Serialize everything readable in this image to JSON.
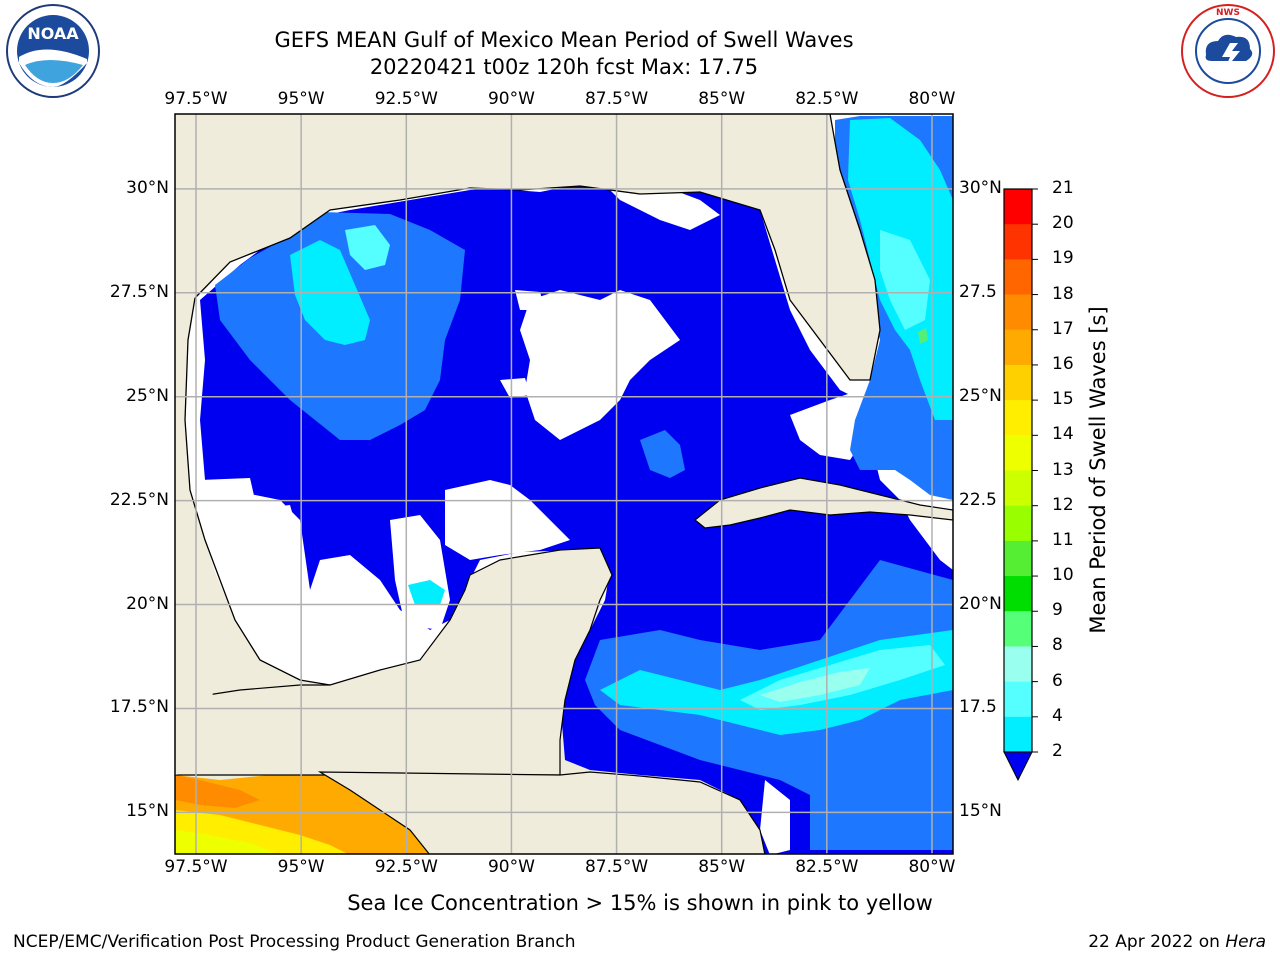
{
  "title": {
    "line1": "GEFS MEAN Gulf of Mexico Mean Period of Swell Waves",
    "line2": "20220421 t00z 120h fcst   Max: 17.75"
  },
  "logos": {
    "left": {
      "name": "noaa-logo",
      "text": "NOAA"
    },
    "right": {
      "name": "nws-logo",
      "text": "NATIONAL WEATHER SERVICE"
    }
  },
  "map": {
    "lon_ticks": [
      "97.5°W",
      "95°W",
      "92.5°W",
      "90°W",
      "87.5°W",
      "85°W",
      "82.5°W",
      "80°W"
    ],
    "lat_ticks_left": [
      "30°N",
      "27.5°N",
      "25°N",
      "22.5°N",
      "20°N",
      "17.5°N",
      "15°N"
    ],
    "lat_ticks_right": [
      "30°N",
      "27.5",
      "25°N",
      "22.5",
      "20°N",
      "17.5",
      "15°N"
    ],
    "extent": {
      "lon": [
        -98,
        -79.5
      ],
      "lat": [
        14,
        31.8
      ]
    },
    "colors": {
      "land": "#efecdc",
      "no_data": "#ffffff",
      "gridline": "#b0b0b0"
    }
  },
  "colorbar": {
    "label": "Mean Period of Swell Waves [s]",
    "ticks": [
      "21",
      "20",
      "19",
      "18",
      "17",
      "16",
      "15",
      "14",
      "13",
      "12",
      "11",
      "10",
      "9",
      "8",
      "6",
      "4",
      "2"
    ],
    "colors": [
      "#ff0000",
      "#ff3300",
      "#ff6600",
      "#ff8c00",
      "#ffaa00",
      "#ffd000",
      "#ffee00",
      "#eeff00",
      "#ccff00",
      "#99ff00",
      "#55ee33",
      "#00dd00",
      "#55ff77",
      "#99ffee",
      "#55ffff",
      "#00eeff",
      "#0099ff",
      "#1e78ff"
    ]
  },
  "note": "Sea Ice Concentration > 15% is shown in pink to yellow",
  "footer": {
    "left": "NCEP/EMC/Verification Post Processing Product Generation Branch",
    "right_prefix": "22 Apr 2022 on ",
    "right_host": "Hera"
  }
}
